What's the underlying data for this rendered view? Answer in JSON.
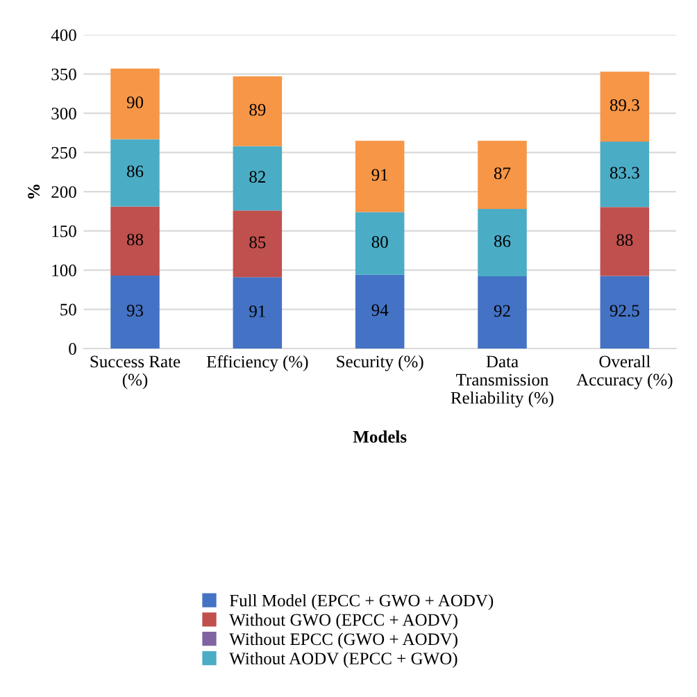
{
  "chart_data": {
    "type": "bar",
    "stacked": true,
    "xlabel": "Models",
    "ylabel": "%",
    "categories": [
      "Success Rate\n(%)",
      "Efficiency (%)",
      "Security (%)",
      "Data\nTransmission\nReliability (%)",
      "Overall\nAccuracy (%)"
    ],
    "series": [
      {
        "name": "Full Model (EPCC + GWO + AODV)",
        "color": "#4472c4",
        "values": [
          93,
          91,
          94,
          92,
          92.5
        ]
      },
      {
        "name": "Without GWO (EPCC + AODV)",
        "color": "#c0504d",
        "values": [
          88,
          85,
          null,
          null,
          88
        ]
      },
      {
        "name": "Without EPCC (GWO + AODV)",
        "color": "#8064a2",
        "values": [
          null,
          null,
          null,
          null,
          null
        ]
      },
      {
        "name": "Without AODV (EPCC + GWO)",
        "color": "#4bacc6",
        "values": [
          86,
          82,
          80,
          86,
          83.3
        ]
      },
      {
        "color": "#f79646",
        "values": [
          90,
          89,
          91,
          87,
          89.3
        ]
      }
    ],
    "ylim": [
      0,
      400
    ],
    "yticks": [
      0,
      50,
      100,
      150,
      200,
      250,
      300,
      350,
      400
    ],
    "grid": "y",
    "legend": "bottom",
    "data_labels": true
  }
}
